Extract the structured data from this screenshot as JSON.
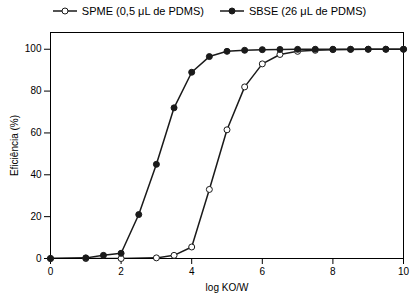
{
  "chart_data": {
    "type": "line",
    "xlabel": "log KO/W",
    "ylabel": "Eficiência (%)",
    "xlim": [
      0,
      10
    ],
    "ylim": [
      0,
      108
    ],
    "xticks": [
      0,
      2,
      4,
      6,
      8,
      10
    ],
    "yticks": [
      0,
      20,
      40,
      60,
      80,
      100
    ],
    "legend": "top",
    "series": [
      {
        "name": "SPME (0,5 μL de PDMS)",
        "color": "#1a1a1a",
        "marker": "open circle",
        "x": [
          0,
          1,
          2,
          3,
          3.5,
          4,
          4.5,
          5,
          5.5,
          6,
          6.5,
          7,
          7.5,
          8,
          8.5,
          9,
          9.5,
          10
        ],
        "values": [
          0,
          0,
          0,
          0.3,
          1.5,
          5.5,
          33.0,
          61.5,
          82.0,
          93.0,
          97.5,
          99.0,
          99.5,
          99.8,
          99.9,
          100.0,
          100.0,
          100.0
        ]
      },
      {
        "name": "SBSE (26 μL de PDMS)",
        "color": "#1a1a1a",
        "marker": "circle",
        "x": [
          0,
          1,
          1.5,
          2,
          2.5,
          3,
          3.5,
          4,
          4.5,
          5,
          5.5,
          6,
          6.5,
          7,
          7.5,
          8,
          8.5,
          9,
          9.5,
          10
        ],
        "values": [
          0,
          0.3,
          1.5,
          2.5,
          21.0,
          45.0,
          72.0,
          89.0,
          96.5,
          99.0,
          99.5,
          99.8,
          99.9,
          99.95,
          100.0,
          100.0,
          100.0,
          100.0,
          100.0,
          100.0
        ]
      }
    ]
  }
}
